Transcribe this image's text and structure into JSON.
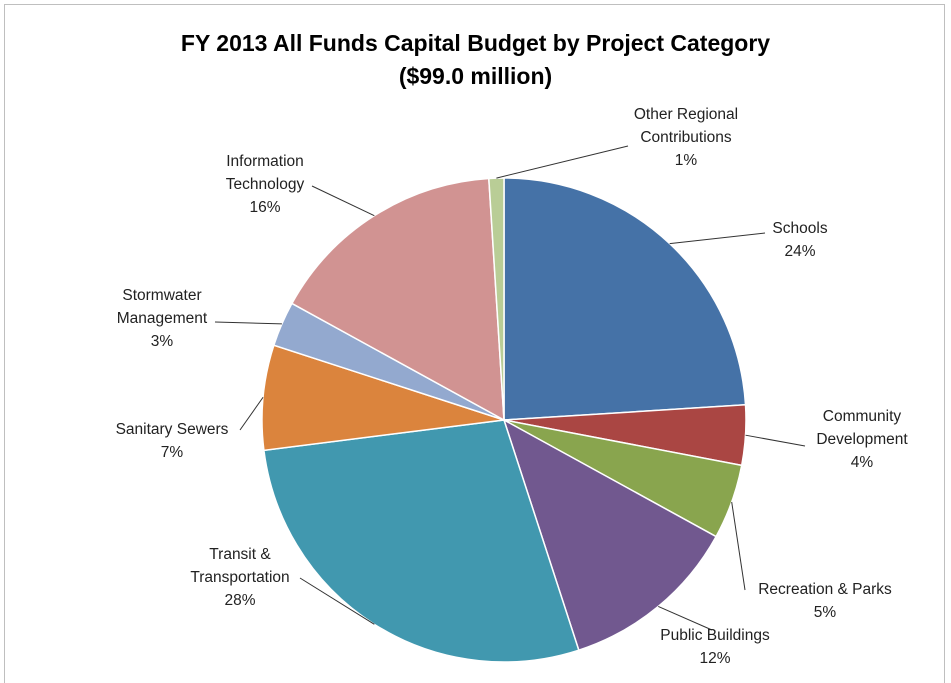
{
  "chart_data": {
    "type": "pie",
    "title": "FY 2013 All Funds Capital Budget by Project Category",
    "subtitle": "($99.0 million)",
    "categories": [
      "Schools",
      "Community Development",
      "Recreation & Parks",
      "Public Buildings",
      "Transit & Transportation",
      "Sanitary Sewers",
      "Stormwater Management",
      "Information Technology",
      "Other Regional Contributions"
    ],
    "values": [
      24,
      4,
      5,
      12,
      28,
      7,
      3,
      16,
      1
    ],
    "value_labels": [
      "24%",
      "4%",
      "5%",
      "12%",
      "28%",
      "7%",
      "3%",
      "16%",
      "1%"
    ],
    "colors": [
      "#4572a7",
      "#aa4643",
      "#89a54e",
      "#71588f",
      "#4198af",
      "#db843d",
      "#93a9cf",
      "#d19392",
      "#b9cd96"
    ]
  }
}
